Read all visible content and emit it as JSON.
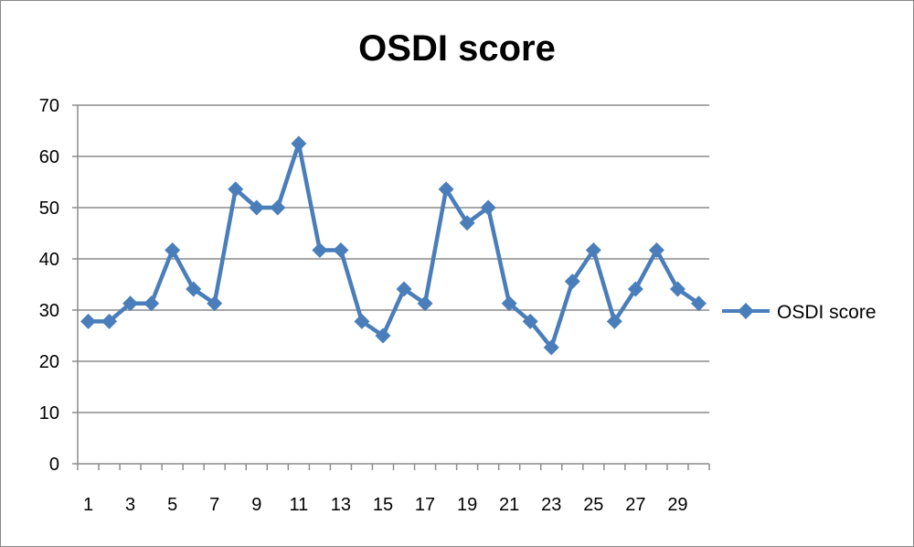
{
  "chart_data": {
    "type": "line",
    "title": "OSDI score",
    "xlabel": "",
    "ylabel": "",
    "categories": [
      1,
      2,
      3,
      4,
      5,
      6,
      7,
      8,
      9,
      10,
      11,
      12,
      13,
      14,
      15,
      16,
      17,
      18,
      19,
      20,
      21,
      22,
      23,
      24,
      25,
      26,
      27,
      28,
      29,
      30
    ],
    "x_tick_labels": [
      "1",
      "3",
      "5",
      "7",
      "9",
      "11",
      "13",
      "15",
      "17",
      "19",
      "21",
      "23",
      "25",
      "27",
      "29"
    ],
    "y_tick_labels": [
      "0",
      "10",
      "20",
      "30",
      "40",
      "50",
      "60",
      "70"
    ],
    "ylim": [
      0,
      70
    ],
    "grid": true,
    "legend_position": "right",
    "series": [
      {
        "name": "OSDI score",
        "color": "#4a7ebb",
        "marker": "diamond",
        "values": [
          27.8,
          27.8,
          31.3,
          31.3,
          41.7,
          34.1,
          31.3,
          53.6,
          50,
          50,
          62.5,
          41.7,
          41.7,
          27.8,
          25,
          34.1,
          31.3,
          53.6,
          47,
          50,
          31.3,
          27.8,
          22.7,
          35.6,
          41.7,
          27.8,
          34.1,
          41.7,
          34.1,
          31.3
        ]
      }
    ]
  }
}
